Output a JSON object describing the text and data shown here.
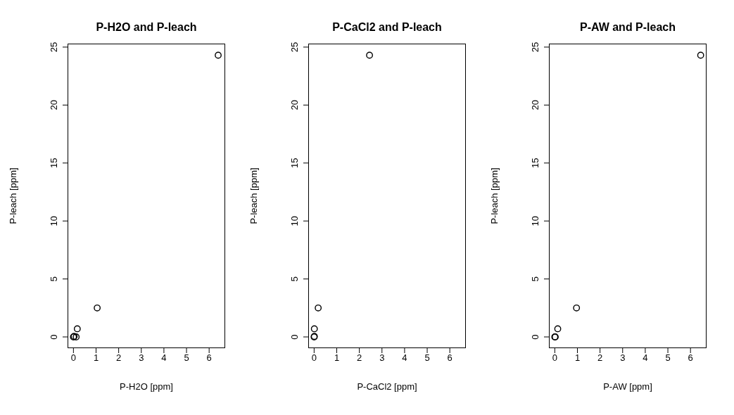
{
  "chart_data": [
    {
      "type": "scatter",
      "title": "P-H2O and P-leach",
      "xlabel": "P-H2O [ppm]",
      "ylabel": "P-leach [ppm]",
      "x": [
        0,
        0.03,
        0.12,
        0.17,
        1.05,
        6.4
      ],
      "values": [
        0,
        0.05,
        0,
        0.7,
        2.5,
        24.3
      ],
      "color": "#000000",
      "marker": "circle",
      "xlim": [
        -0.26,
        6.71
      ],
      "ylim": [
        -0.97,
        25.3
      ],
      "xticks": [
        0,
        1,
        2,
        3,
        4,
        5,
        6
      ],
      "yticks": [
        0,
        5,
        10,
        15,
        20,
        25
      ],
      "grid": false,
      "legend": false
    },
    {
      "type": "scatter",
      "title": "P-CaCl2 and P-leach",
      "xlabel": "P-CaCl2 [ppm]",
      "ylabel": "P-leach [ppm]",
      "x": [
        0,
        0.01,
        0.01,
        0.18,
        2.45
      ],
      "values": [
        0,
        0.05,
        0.7,
        2.5,
        24.3
      ],
      "color": "#000000",
      "marker": "circle",
      "xlim": [
        -0.26,
        6.71
      ],
      "ylim": [
        -0.97,
        25.3
      ],
      "xticks": [
        0,
        1,
        2,
        3,
        4,
        5,
        6
      ],
      "yticks": [
        0,
        5,
        10,
        15,
        20,
        25
      ],
      "grid": false,
      "legend": false
    },
    {
      "type": "scatter",
      "title": "P-AW and P-leach",
      "xlabel": "P-AW [ppm]",
      "ylabel": "P-leach [ppm]",
      "x": [
        0,
        0.02,
        0.13,
        0.96,
        6.45
      ],
      "values": [
        0,
        0,
        0.7,
        2.5,
        24.3
      ],
      "color": "#000000",
      "marker": "circle",
      "xlim": [
        -0.26,
        6.71
      ],
      "ylim": [
        -0.97,
        25.3
      ],
      "xticks": [
        0,
        1,
        2,
        3,
        4,
        5,
        6
      ],
      "yticks": [
        0,
        5,
        10,
        15,
        20,
        25
      ],
      "grid": false,
      "legend": false
    }
  ]
}
